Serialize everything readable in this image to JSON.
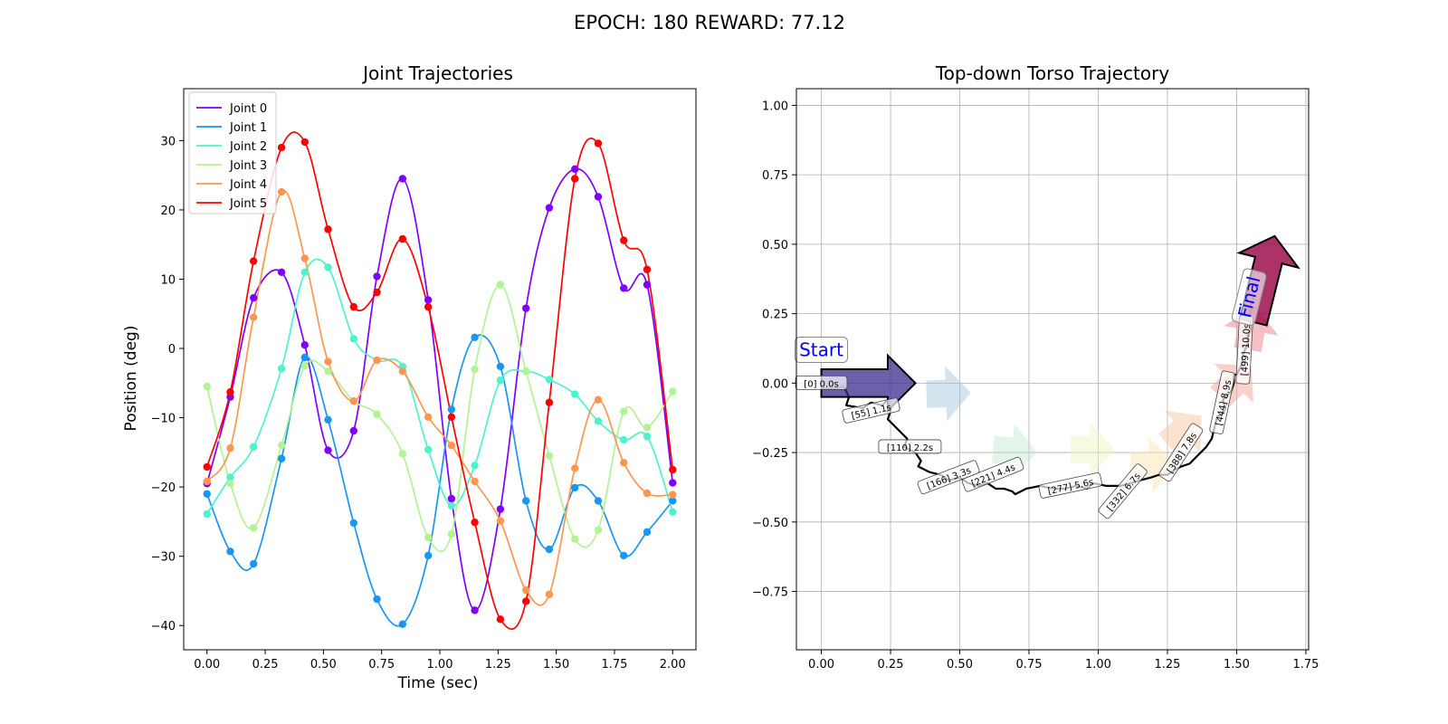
{
  "suptitle": "EPOCH: 180 REWARD:  77.12",
  "chart_data": [
    {
      "type": "line",
      "title": "Joint Trajectories",
      "xlabel": "Time (sec)",
      "ylabel": "Position (deg)",
      "xlim": [
        -0.1,
        2.1
      ],
      "ylim": [
        -43.5,
        37.5
      ],
      "xticks": [
        0,
        0.25,
        0.5,
        0.75,
        1.0,
        1.25,
        1.5,
        1.75,
        2.0
      ],
      "xtick_labels": [
        "0.00",
        "0.25",
        "0.50",
        "0.75",
        "1.00",
        "1.25",
        "1.50",
        "1.75",
        "2.00"
      ],
      "yticks": [
        -40,
        -30,
        -20,
        -10,
        0,
        10,
        20,
        30
      ],
      "ytick_labels": [
        "−40",
        "−30",
        "−20",
        "−10",
        "0",
        "10",
        "20",
        "30"
      ],
      "legend_position": "top-left",
      "x": [
        0.0,
        0.1,
        0.2,
        0.32,
        0.42,
        0.52,
        0.63,
        0.73,
        0.84,
        0.95,
        1.05,
        1.15,
        1.26,
        1.37,
        1.47,
        1.58,
        1.68,
        1.79,
        1.89,
        2.0
      ],
      "series": [
        {
          "name": "Joint 0",
          "color": "#8000ff",
          "values": [
            -19.5,
            -7.0,
            7.3,
            11.0,
            0.5,
            -14.7,
            -11.9,
            10.4,
            24.5,
            7.0,
            -21.7,
            -37.8,
            -23.2,
            5.8,
            20.3,
            25.9,
            21.9,
            8.7,
            9.2,
            -19.4
          ]
        },
        {
          "name": "Joint 1",
          "color": "#1996f3",
          "values": [
            -21.0,
            -29.3,
            -31.1,
            -15.9,
            -1.3,
            -10.3,
            -25.2,
            -36.2,
            -39.8,
            -29.9,
            -8.8,
            1.6,
            -2.6,
            -22.0,
            -29.0,
            -20.1,
            -22.0,
            -29.9,
            -26.5,
            -22.0
          ]
        },
        {
          "name": "Joint 2",
          "color": "#4df3ce",
          "values": [
            -23.9,
            -18.6,
            -14.2,
            -2.9,
            11.0,
            11.7,
            1.4,
            -1.7,
            -2.6,
            -14.6,
            -22.7,
            -16.9,
            -4.6,
            -3.3,
            -4.5,
            -6.6,
            -10.5,
            -13.2,
            -12.7,
            -23.6
          ]
        },
        {
          "name": "Joint 3",
          "color": "#b2f396",
          "values": [
            -5.5,
            -19.5,
            -25.9,
            -14.0,
            -2.5,
            -3.3,
            -7.6,
            -9.5,
            -15.2,
            -27.3,
            -26.8,
            -3.0,
            9.2,
            -3.3,
            -15.5,
            -27.5,
            -26.2,
            -9.1,
            -11.4,
            -6.2
          ]
        },
        {
          "name": "Joint 4",
          "color": "#ff964f",
          "values": [
            -19.2,
            -14.4,
            4.5,
            22.6,
            13.0,
            -1.9,
            -7.6,
            -1.7,
            -3.3,
            -9.9,
            -14.0,
            -19.2,
            -24.9,
            -34.9,
            -35.5,
            -17.3,
            -7.4,
            -16.5,
            -20.9,
            -21.1
          ]
        },
        {
          "name": "Joint 5",
          "color": "#ff0000",
          "values": [
            -17.1,
            -6.3,
            12.6,
            29.0,
            29.8,
            17.2,
            6.0,
            8.1,
            15.8,
            6.0,
            -9.9,
            -25.1,
            -39.1,
            -36.5,
            -7.8,
            24.5,
            29.6,
            15.6,
            11.4,
            -17.5
          ]
        }
      ]
    },
    {
      "type": "line",
      "title": "Top-down Torso Trajectory",
      "xlim": [
        -0.09,
        1.76
      ],
      "ylim": [
        -0.96,
        1.06
      ],
      "xticks": [
        0,
        0.25,
        0.5,
        0.75,
        1.0,
        1.25,
        1.5,
        1.75
      ],
      "xtick_labels": [
        "0.00",
        "0.25",
        "0.50",
        "0.75",
        "1.00",
        "1.25",
        "1.50",
        "1.75"
      ],
      "yticks": [
        -0.75,
        -0.5,
        -0.25,
        0.0,
        0.25,
        0.5,
        0.75,
        1.0
      ],
      "ytick_labels": [
        "−0.75",
        "−0.50",
        "−0.25",
        "0.00",
        "0.25",
        "0.50",
        "0.75",
        "1.00"
      ],
      "grid": true,
      "path": {
        "x": [
          0.0,
          0.05,
          0.08,
          0.1,
          0.09,
          0.15,
          0.18,
          0.22,
          0.24,
          0.25,
          0.24,
          0.26,
          0.31,
          0.3,
          0.34,
          0.36,
          0.35,
          0.39,
          0.43,
          0.46,
          0.5,
          0.53,
          0.57,
          0.6,
          0.63,
          0.66,
          0.69,
          0.7,
          0.74,
          0.79,
          0.84,
          0.88,
          0.92,
          0.96,
          0.98,
          1.03,
          1.08,
          1.12,
          1.15,
          1.19,
          1.22,
          1.25,
          1.28,
          1.3,
          1.33,
          1.36,
          1.39,
          1.41,
          1.42,
          1.43,
          1.45,
          1.46,
          1.45,
          1.48,
          1.49,
          1.49,
          1.5,
          1.51,
          1.52,
          1.52,
          1.53,
          1.54,
          1.54,
          1.55,
          1.55,
          1.55,
          1.55,
          1.56,
          1.56
        ],
        "y": [
          -0.02,
          -0.02,
          -0.01,
          -0.05,
          -0.08,
          -0.09,
          -0.07,
          -0.08,
          -0.06,
          -0.1,
          -0.13,
          -0.15,
          -0.2,
          -0.23,
          -0.25,
          -0.28,
          -0.3,
          -0.32,
          -0.33,
          -0.35,
          -0.34,
          -0.36,
          -0.37,
          -0.36,
          -0.38,
          -0.38,
          -0.39,
          -0.4,
          -0.38,
          -0.37,
          -0.38,
          -0.38,
          -0.37,
          -0.38,
          -0.36,
          -0.37,
          -0.37,
          -0.36,
          -0.35,
          -0.34,
          -0.33,
          -0.33,
          -0.31,
          -0.3,
          -0.29,
          -0.26,
          -0.23,
          -0.2,
          -0.16,
          -0.12,
          -0.11,
          -0.09,
          -0.06,
          -0.03,
          0.0,
          0.03,
          0.03,
          0.05,
          0.07,
          0.09,
          0.12,
          0.14,
          0.17,
          0.19,
          0.22,
          0.25,
          0.28,
          0.3,
          0.31
        ]
      },
      "heading_arrows": [
        {
          "x": 0.38,
          "y": -0.04,
          "angle_deg": 2,
          "color": "#9fc3da",
          "alpha": 0.45
        },
        {
          "x": 0.62,
          "y": -0.24,
          "angle_deg": -4,
          "color": "#b9e6c6",
          "alpha": 0.4
        },
        {
          "x": 0.9,
          "y": -0.24,
          "angle_deg": 0,
          "color": "#eaf5bd",
          "alpha": 0.45
        },
        {
          "x": 1.12,
          "y": -0.3,
          "angle_deg": 5,
          "color": "#fce6b4",
          "alpha": 0.5
        },
        {
          "x": 1.25,
          "y": -0.22,
          "angle_deg": 40,
          "color": "#f8c7a6",
          "alpha": 0.5
        },
        {
          "x": 1.44,
          "y": -0.05,
          "angle_deg": 45,
          "color": "#f2a596",
          "alpha": 0.5
        },
        {
          "x": 1.54,
          "y": 0.12,
          "angle_deg": 80,
          "color": "#ec8c97",
          "alpha": 0.55
        }
      ],
      "start_arrow": {
        "x": 0.0,
        "y": 0.0,
        "angle_deg": 0,
        "color": "#3a2c8e",
        "label": "Start"
      },
      "final_arrow": {
        "x": 1.56,
        "y": 0.22,
        "angle_deg": 76,
        "color": "#9c0f4d",
        "label": "Final"
      },
      "annotations": [
        {
          "text": "[0] 0.0s",
          "x": 0.0,
          "y": 0.0,
          "rotation": 0
        },
        {
          "text": "[55] 1.1s",
          "x": 0.18,
          "y": -0.1,
          "rotation": -13
        },
        {
          "text": "[110] 2.2s",
          "x": 0.32,
          "y": -0.23,
          "rotation": 0
        },
        {
          "text": "[166] 3.3s",
          "x": 0.46,
          "y": -0.34,
          "rotation": -21
        },
        {
          "text": "[221] 4.4s",
          "x": 0.62,
          "y": -0.33,
          "rotation": -22
        },
        {
          "text": "[277] 5.6s",
          "x": 0.9,
          "y": -0.37,
          "rotation": -12
        },
        {
          "text": "[332] 6.7s",
          "x": 1.09,
          "y": -0.39,
          "rotation": -50
        },
        {
          "text": "[388] 7.8s",
          "x": 1.3,
          "y": -0.25,
          "rotation": -57
        },
        {
          "text": "[444] 8.9s",
          "x": 1.45,
          "y": -0.07,
          "rotation": -78
        },
        {
          "text": "[499] 10.0s",
          "x": 1.53,
          "y": 0.12,
          "rotation": -87
        }
      ]
    }
  ]
}
